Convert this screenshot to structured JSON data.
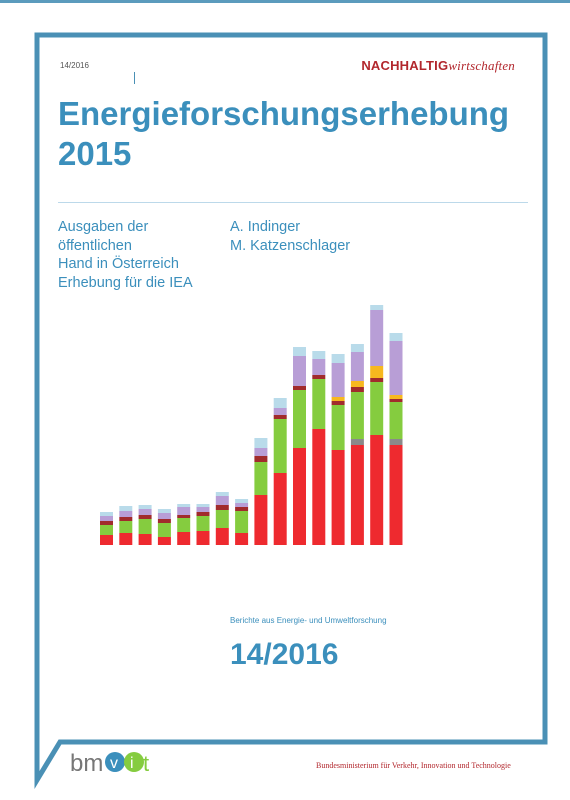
{
  "header": {
    "issue_small": "14/2016",
    "series_logo_bold": "NACHHALTIG",
    "series_logo_italic": "wirtschaften"
  },
  "title": {
    "line1": "Energieforschungserhebung",
    "line2": "2015"
  },
  "subtitle": {
    "lines": [
      "Ausgaben der",
      "öffentlichen",
      "Hand in Österreich",
      "Erhebung für die IEA"
    ]
  },
  "authors": [
    "A. Indinger",
    "M. Katzenschlager"
  ],
  "series_caption": "Berichte aus Energie- und Umweltforschung",
  "issue_big": "14/2016",
  "footer": {
    "logo_text": "bmvit",
    "ministry": "Bundesministerium für Verkehr, Innovation und Technologie"
  },
  "colors": {
    "accent_blue": "#3b8fbc",
    "brand_red": "#b2272d"
  },
  "chart_data": {
    "type": "bar",
    "stacked": true,
    "axes_visible": false,
    "categories": [
      "",
      "",
      "",
      "",
      "",
      "",
      "",
      "",
      "",
      "",
      "",
      "",
      "",
      "",
      "",
      ""
    ],
    "series": [
      {
        "color": "#ee2a2f",
        "values": [
          10,
          12,
          11,
          8,
          13,
          14,
          17,
          12,
          50,
          72,
          97,
          116,
          95,
          100,
          110,
          100
        ]
      },
      {
        "color": "#8a8a8a",
        "values": [
          0,
          0,
          0,
          0,
          0,
          0,
          0,
          0,
          0,
          0,
          0,
          0,
          0,
          6,
          0,
          6
        ]
      },
      {
        "color": "#85cc3f",
        "values": [
          10,
          12,
          15,
          14,
          14,
          15,
          18,
          22,
          33,
          54,
          58,
          50,
          45,
          47,
          53,
          37
        ]
      },
      {
        "color": "#a12b2c",
        "values": [
          4,
          4,
          4,
          4,
          3,
          4,
          5,
          4,
          6,
          4,
          4,
          4,
          4,
          5,
          4,
          3
        ]
      },
      {
        "color": "#f7b81f",
        "values": [
          0,
          0,
          0,
          0,
          0,
          0,
          0,
          0,
          0,
          0,
          0,
          0,
          4,
          6,
          12,
          4
        ]
      },
      {
        "color": "#b89ed6",
        "values": [
          5,
          6,
          6,
          6,
          8,
          5,
          9,
          4,
          8,
          7,
          30,
          16,
          34,
          29,
          56,
          54
        ]
      },
      {
        "color": "#b9dbea",
        "values": [
          4,
          5,
          4,
          4,
          3,
          3,
          4,
          4,
          10,
          10,
          9,
          8,
          9,
          8,
          5,
          8
        ]
      }
    ]
  }
}
